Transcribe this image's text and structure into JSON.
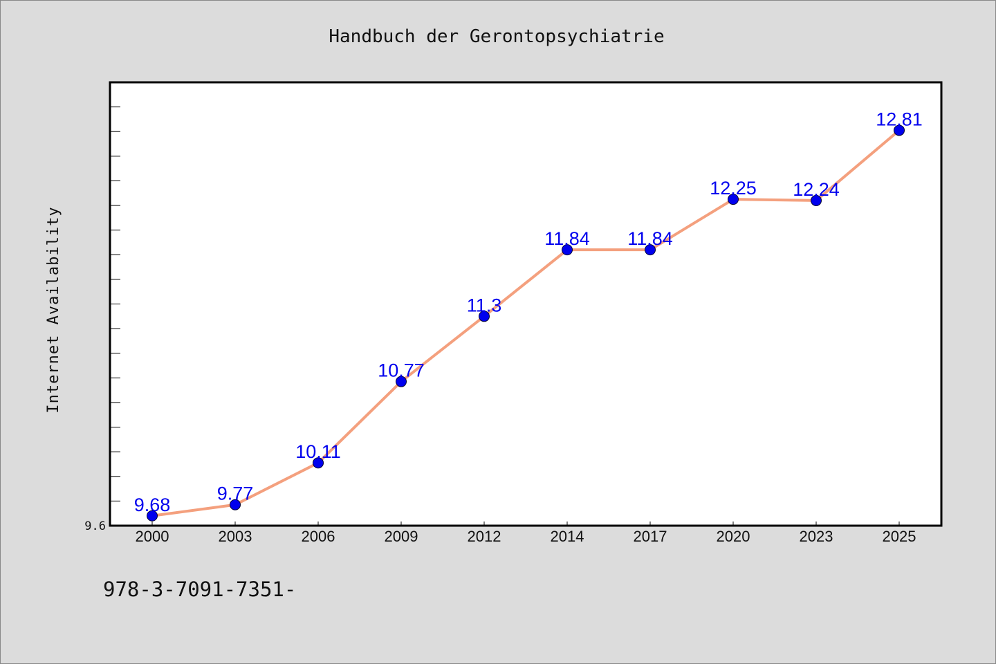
{
  "chart_data": {
    "type": "line",
    "title": "Handbuch der Gerontopsychiatrie",
    "xlabel": "",
    "ylabel": "Internet Availability",
    "categories": [
      "2000",
      "2003",
      "2006",
      "2009",
      "2012",
      "2014",
      "2017",
      "2020",
      "2023",
      "2025"
    ],
    "series": [
      {
        "values": [
          9.68,
          9.77,
          10.11,
          10.77,
          11.3,
          11.84,
          11.84,
          12.25,
          12.24,
          12.81
        ],
        "line_color": "#f4a07e",
        "marker_color": "#0000ee",
        "label_color": "#0000ee"
      }
    ],
    "data_labels": [
      "9.68",
      "9.77",
      "10.11",
      "10.77",
      "11.3",
      "11.84",
      "11.84",
      "12.25",
      "12.24",
      "12.81"
    ],
    "ylim": [
      9.6,
      13.2
    ],
    "ytick_labels": [
      {
        "value": 9.6,
        "label": "9.6"
      }
    ],
    "grid": false,
    "legend": "none"
  },
  "footer": {
    "text": "978-3-7091-7351-"
  }
}
